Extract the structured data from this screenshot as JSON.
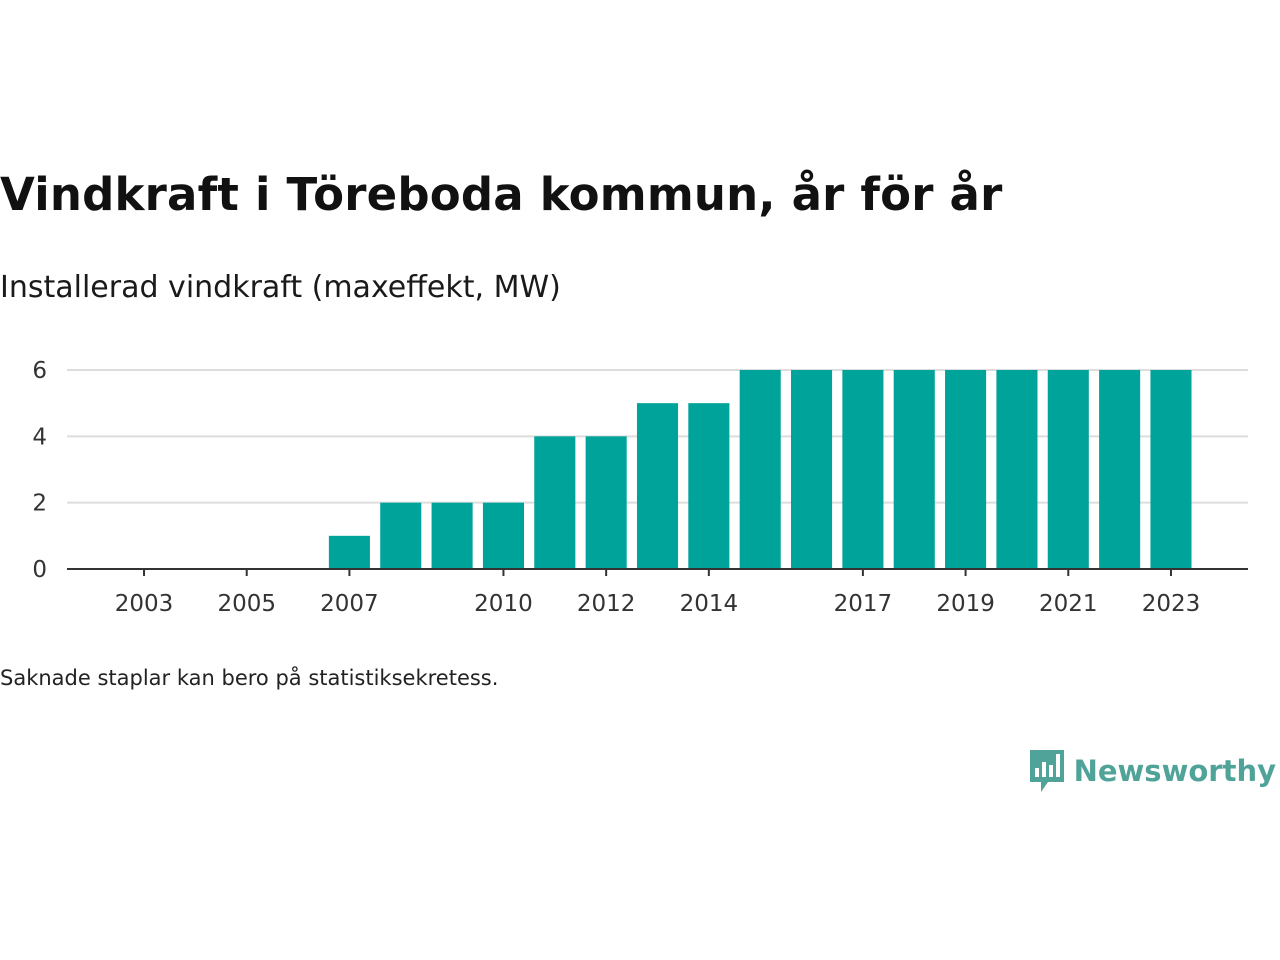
{
  "header": {
    "title": "Vindkraft i Töreboda kommun, år för år",
    "subtitle": "Installerad vindkraft (maxeffekt, MW)"
  },
  "footer": {
    "note": "Saknade staplar kan bero på statistiksekretess.",
    "brand": "Newsworthy"
  },
  "colors": {
    "bar": "#00a39a",
    "grid": "#dddddd",
    "axis": "#333333",
    "brand": "#4fa398"
  },
  "chart_data": {
    "type": "bar",
    "categories": [
      "2007",
      "2008",
      "2009",
      "2010",
      "2011",
      "2012",
      "2013",
      "2014",
      "2015",
      "2016",
      "2017",
      "2018",
      "2019",
      "2020",
      "2021",
      "2022",
      "2023"
    ],
    "values": [
      1,
      2,
      2,
      2,
      4,
      4,
      5,
      5,
      6,
      6,
      6,
      6,
      6,
      6,
      6,
      6,
      6
    ],
    "x_range": [
      2001.5,
      2024.5
    ],
    "x_ticks": [
      "2003",
      "2005",
      "2007",
      "2010",
      "2012",
      "2014",
      "2017",
      "2019",
      "2021",
      "2023"
    ],
    "y_ticks": [
      "0",
      "2",
      "4",
      "6"
    ],
    "ylim": [
      0,
      6
    ],
    "grid": true,
    "legend": "none"
  }
}
